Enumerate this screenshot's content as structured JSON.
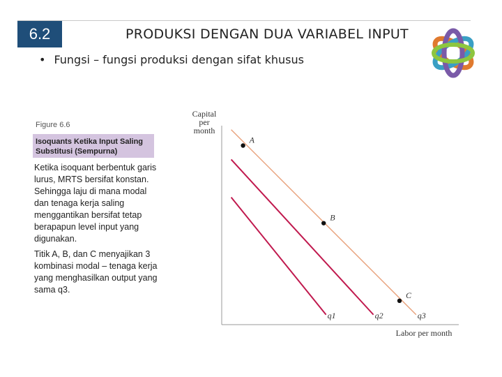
{
  "slide": {
    "section_number": "6.2",
    "title": "PRODUKSI DENGAN DUA VARIABEL INPUT",
    "bullet": "Fungsi – fungsi produksi dengan sifat khusus"
  },
  "figure": {
    "number": "Figure 6.6",
    "caption": "Isoquants Ketika Input Saling Substitusi (Sempurna)"
  },
  "description": [
    "Ketika isoquant berbentuk garis lurus, MRTS bersifat konstan. Sehingga laju di mana modal dan tenaga kerja saling menggantikan bersifat tetap berapapun level input yang digunakan.",
    "Titik A, B, dan C menyajikan 3 kombinasi modal – tenaga kerja yang menghasilkan output yang sama q3."
  ],
  "chart_data": {
    "type": "line",
    "xlabel": "Labor per month",
    "ylabel": "Capital per month",
    "ylabel_lines": [
      "Capital",
      "per",
      "month"
    ],
    "xlim": [
      0,
      10
    ],
    "ylim": [
      0,
      10
    ],
    "grid": false,
    "series": [
      {
        "name": "q1",
        "x": [
          0.4,
          4.4
        ],
        "y": [
          6.4,
          0.5
        ],
        "color": "#c0194e"
      },
      {
        "name": "q2",
        "x": [
          0.4,
          6.4
        ],
        "y": [
          8.3,
          0.5
        ],
        "color": "#c0194e"
      },
      {
        "name": "q3",
        "x": [
          0.4,
          8.2
        ],
        "y": [
          9.8,
          0.5
        ],
        "color": "#e8a07a"
      }
    ],
    "points": [
      {
        "label": "A",
        "x": 0.9,
        "y": 9.0
      },
      {
        "label": "B",
        "x": 4.3,
        "y": 5.1
      },
      {
        "label": "C",
        "x": 7.5,
        "y": 1.2
      }
    ]
  }
}
